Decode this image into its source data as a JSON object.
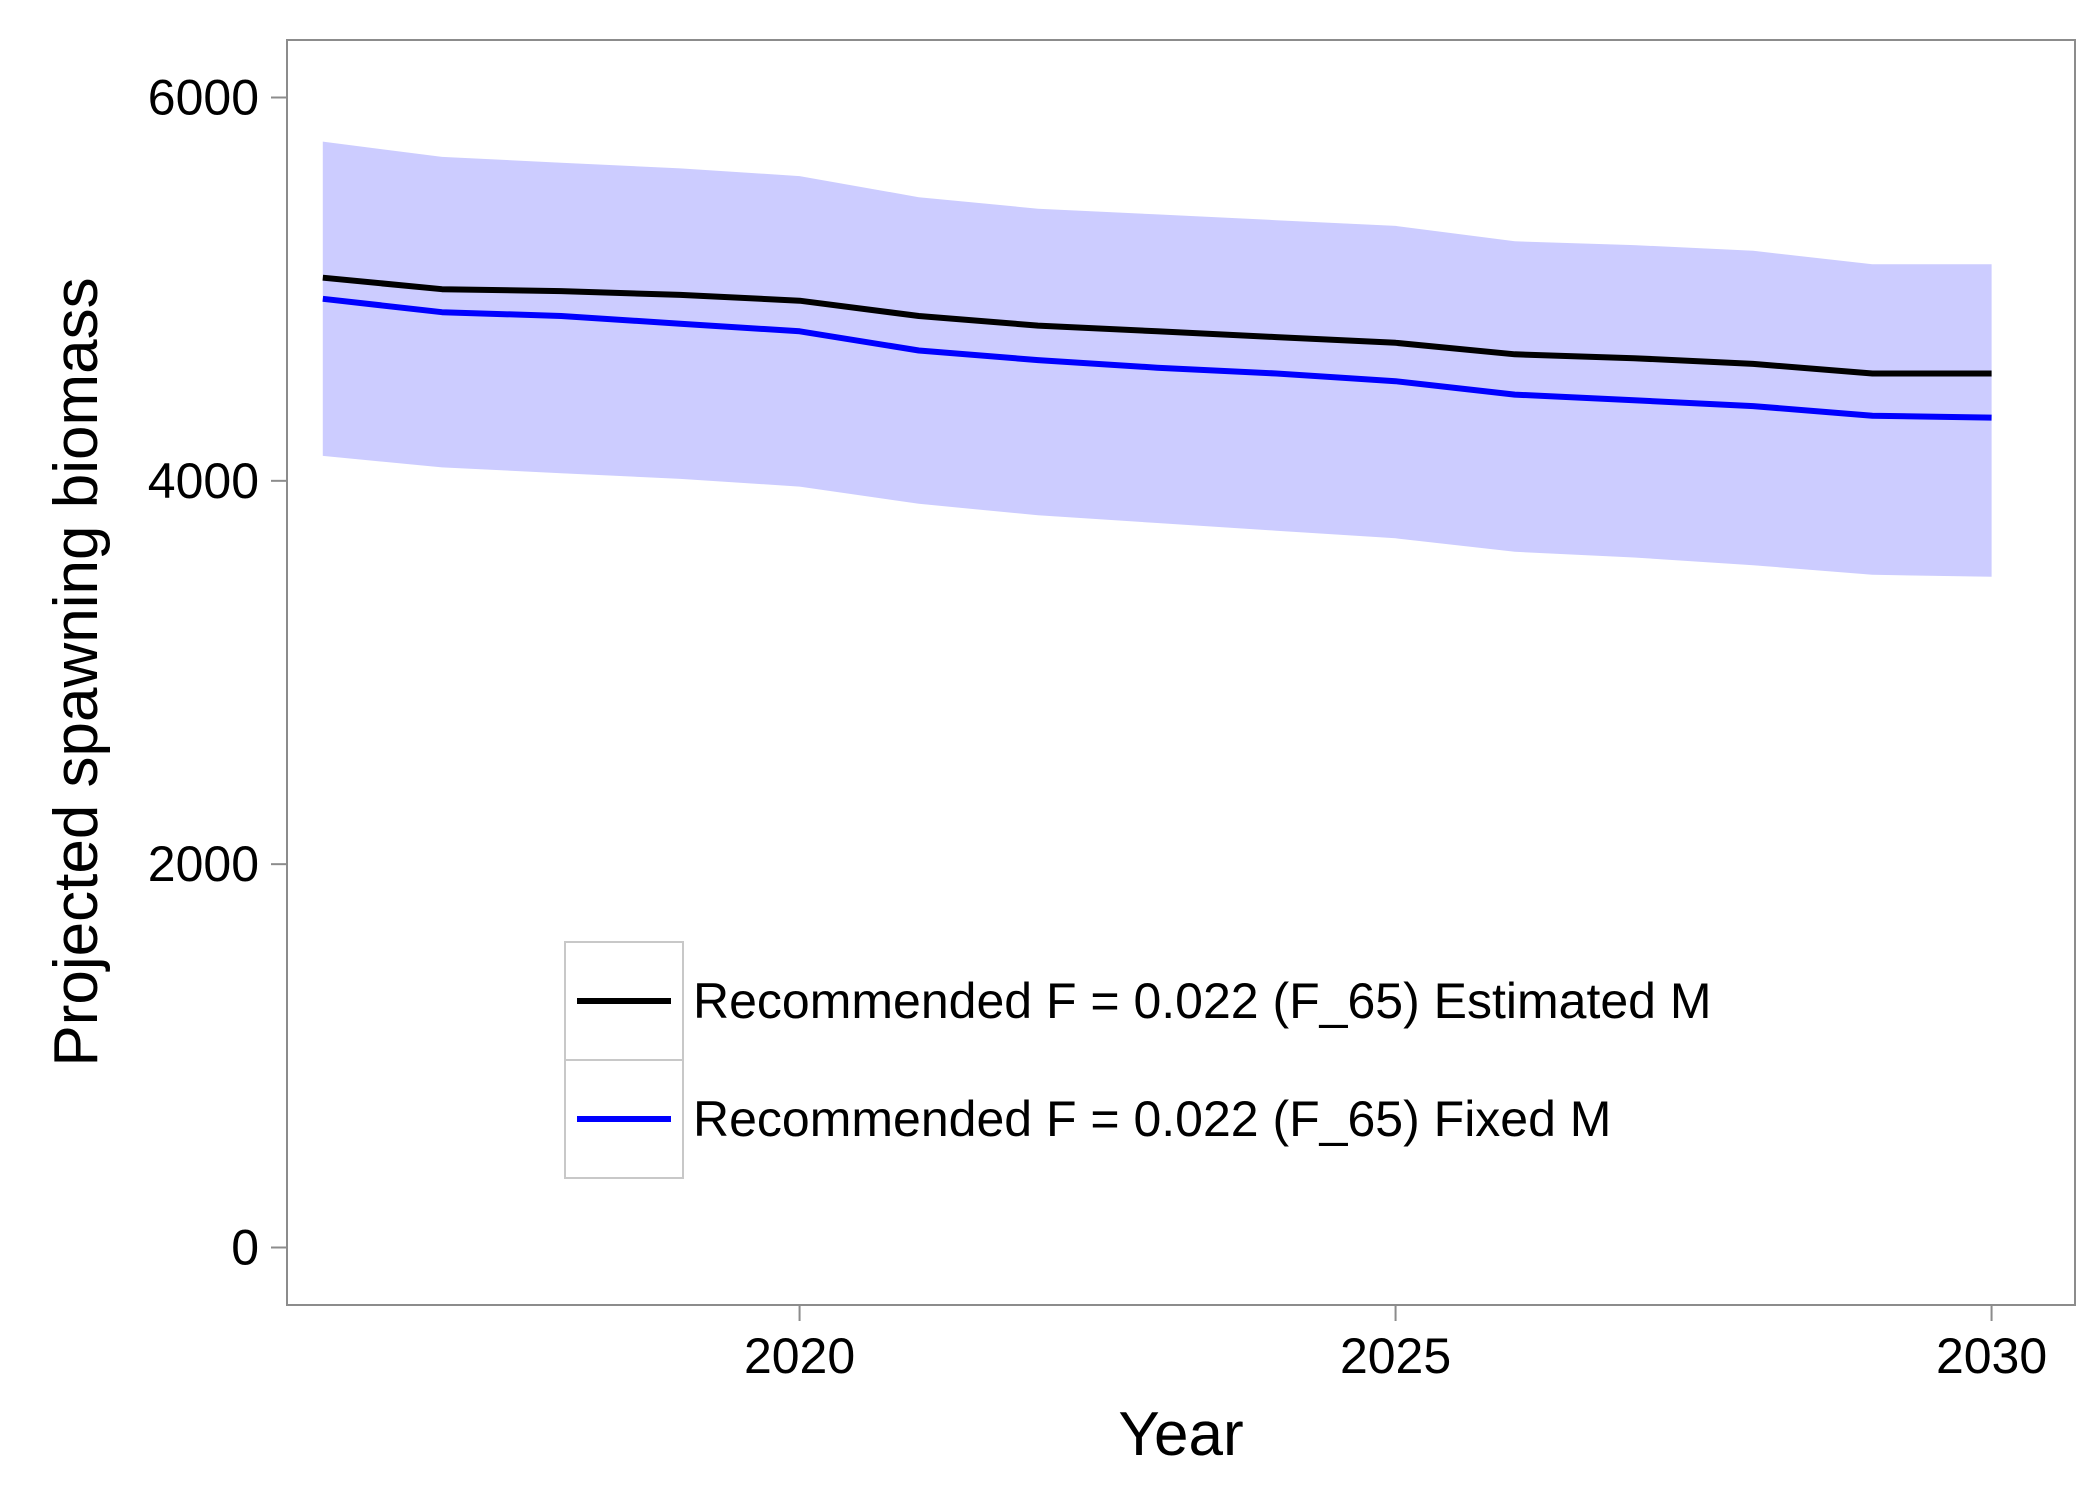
{
  "chart_data": {
    "type": "line",
    "title": "",
    "xlabel": "Year",
    "ylabel": "Projected spawning biomass",
    "xlim": [
      2015.7,
      2030.7
    ],
    "ylim": [
      -300,
      6300
    ],
    "xticks": [
      2020,
      2025,
      2030
    ],
    "yticks": [
      0,
      2000,
      4000,
      6000
    ],
    "grid": false,
    "legend_position": "bottom-center",
    "x": [
      2016,
      2017,
      2018,
      2019,
      2020,
      2021,
      2022,
      2023,
      2024,
      2025,
      2026,
      2027,
      2028,
      2029,
      2030
    ],
    "ribbon": {
      "color": "#ccccff",
      "lower": [
        4130,
        4070,
        4040,
        4010,
        3970,
        3880,
        3820,
        3780,
        3740,
        3700,
        3630,
        3600,
        3560,
        3510,
        3500
      ],
      "upper": [
        5770,
        5690,
        5660,
        5630,
        5590,
        5480,
        5420,
        5390,
        5360,
        5330,
        5250,
        5230,
        5200,
        5130,
        5130
      ]
    },
    "series": [
      {
        "name": "Recommended F = 0.022 (F_65) Estimated M",
        "color": "#000000",
        "values": [
          5060,
          5000,
          4990,
          4970,
          4940,
          4860,
          4810,
          4780,
          4750,
          4720,
          4660,
          4640,
          4610,
          4560,
          4560
        ]
      },
      {
        "name": "Recommended F = 0.022 (F_65) Fixed M",
        "color": "#0000ff",
        "values": [
          4950,
          4880,
          4860,
          4820,
          4780,
          4680,
          4630,
          4590,
          4560,
          4520,
          4450,
          4420,
          4390,
          4340,
          4330
        ]
      }
    ]
  }
}
